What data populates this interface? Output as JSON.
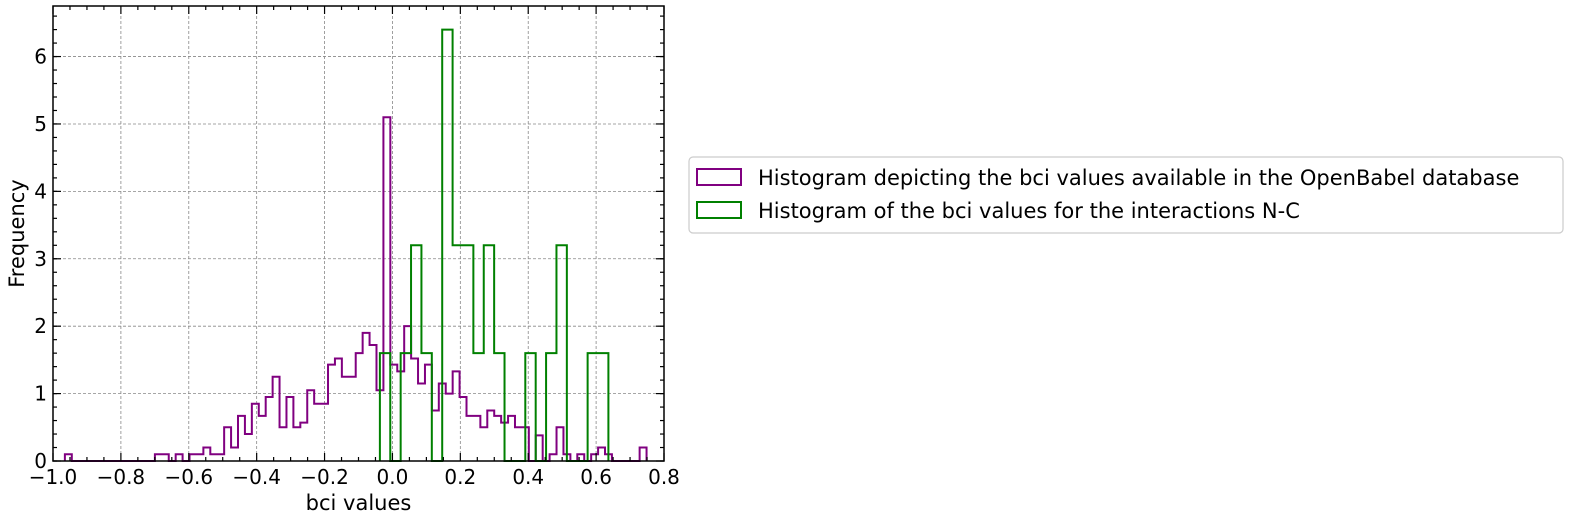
{
  "chart_data": {
    "type": "histogram",
    "title": "",
    "xlabel": "bci values",
    "ylabel": "Frequency",
    "xlim": [
      -1.0,
      0.8
    ],
    "ylim": [
      0,
      6.75
    ],
    "xticks": [
      -1.0,
      -0.8,
      -0.6,
      -0.4,
      -0.2,
      0.0,
      0.2,
      0.4,
      0.6,
      0.8
    ],
    "xtick_labels": [
      "−1.0",
      "−0.8",
      "−0.6",
      "−0.4",
      "−0.2",
      "0.0",
      "0.2",
      "0.4",
      "0.6",
      "0.8"
    ],
    "yticks": [
      0,
      1,
      2,
      3,
      4,
      5,
      6
    ],
    "ytick_labels": [
      "0",
      "1",
      "2",
      "3",
      "4",
      "5",
      "6"
    ],
    "grid": true,
    "legend_position": "outside-right",
    "series": [
      {
        "name": "Histogram depicting the bci values available in the OpenBabel database",
        "color": "#800080",
        "bin_start": -0.965,
        "bin_width": 0.0204,
        "values": [
          0.1,
          0,
          0,
          0,
          0,
          0,
          0,
          0,
          0,
          0,
          0,
          0,
          0,
          0.1,
          0.1,
          0,
          0.1,
          0,
          0.1,
          0.1,
          0.2,
          0.1,
          0.1,
          0.5,
          0.2,
          0.67,
          0.4,
          0.85,
          0.67,
          0.95,
          1.25,
          0.5,
          0.95,
          0.5,
          0.57,
          1.05,
          0.85,
          0.85,
          1.43,
          1.52,
          1.25,
          1.25,
          1.6,
          1.9,
          1.72,
          1.05,
          5.1,
          1.43,
          1.33,
          2.0,
          1.52,
          1.15,
          1.43,
          0.75,
          1.15,
          1.0,
          1.33,
          0.95,
          0.67,
          0.67,
          0.5,
          0.75,
          0.67,
          0.57,
          0.67,
          0.5,
          0.5,
          0.0,
          0.38,
          0.0,
          0.1,
          0.5,
          0.1,
          0,
          0.1,
          0,
          0.1,
          0.2,
          0.1,
          0,
          0,
          0,
          0,
          0.2
        ]
      },
      {
        "name": "Histogram of the bci values for the interactions N-C",
        "color": "#008000",
        "bin_start": -0.037,
        "bin_width": 0.0306,
        "values": [
          1.6,
          0,
          1.6,
          3.2,
          1.6,
          0,
          6.4,
          3.2,
          3.2,
          1.6,
          3.2,
          1.6,
          0,
          0,
          1.6,
          0,
          1.6,
          3.2,
          0,
          0,
          1.6,
          1.6
        ]
      }
    ]
  }
}
